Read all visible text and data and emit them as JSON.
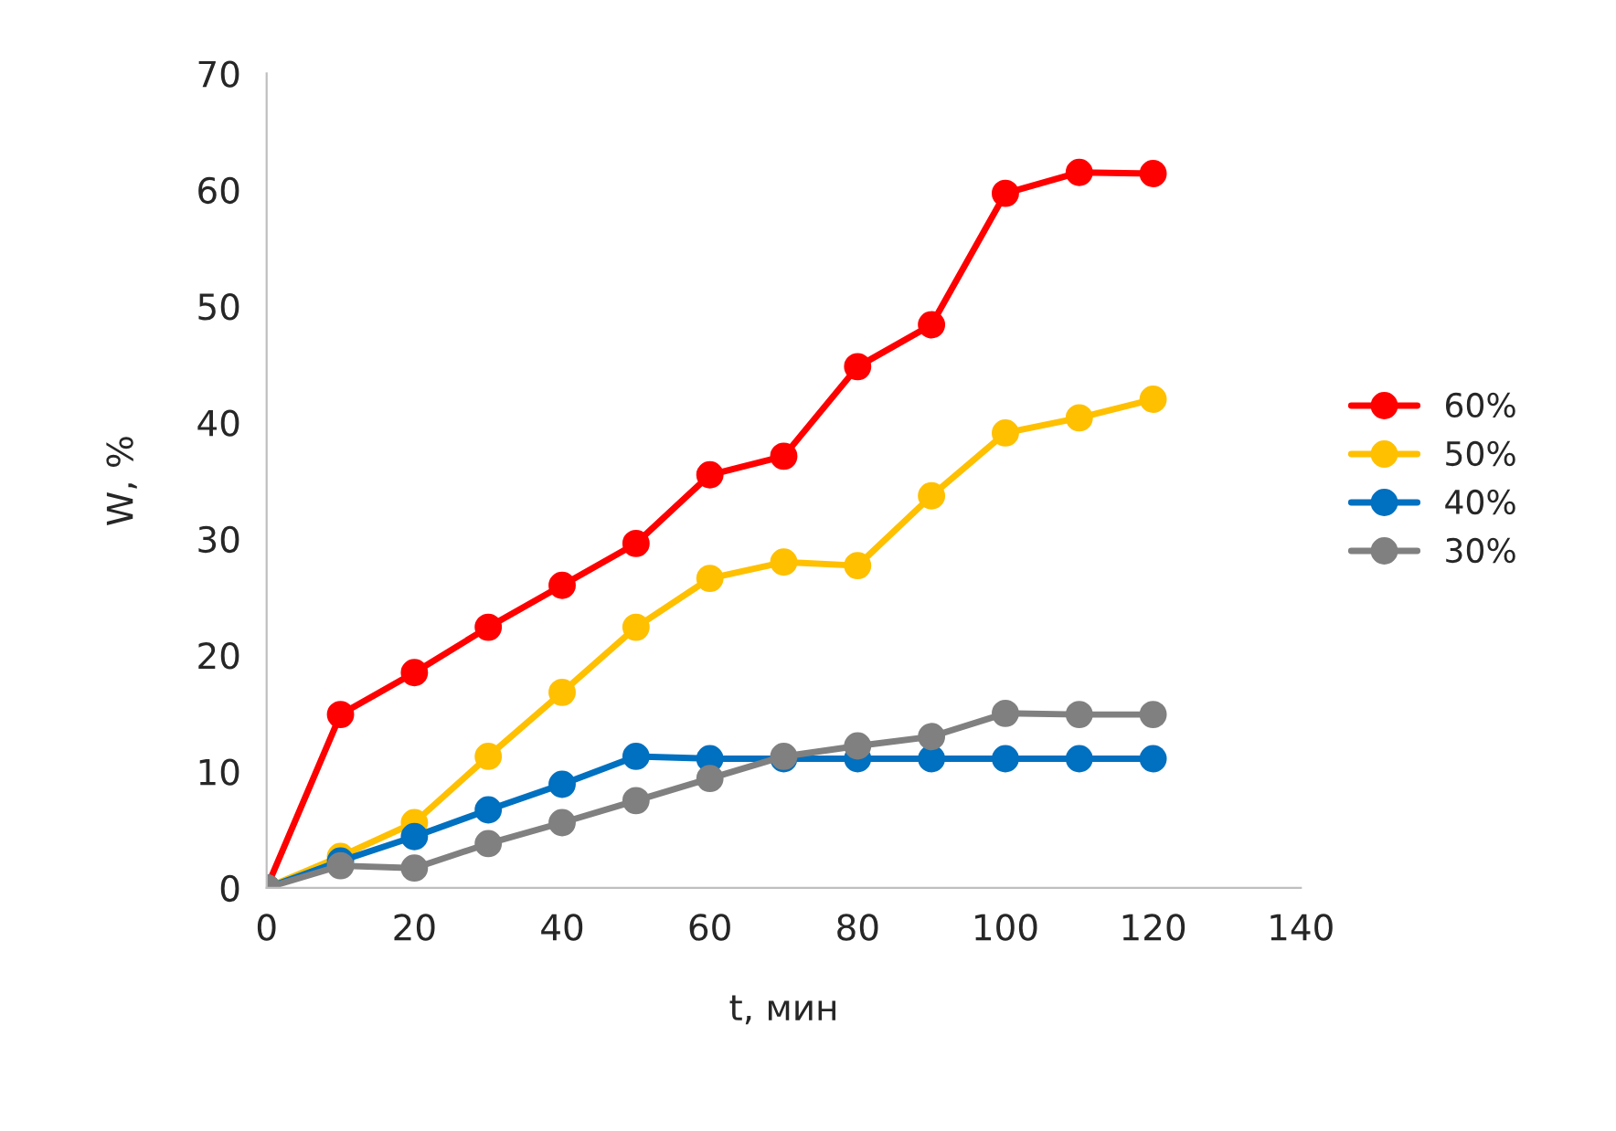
{
  "chart_data": {
    "type": "line",
    "xlabel": "t, мин",
    "ylabel": "W, %",
    "x": [
      0,
      10,
      20,
      30,
      40,
      50,
      60,
      70,
      80,
      90,
      100,
      110,
      120
    ],
    "series": [
      {
        "name": "60%",
        "color": "#ff0000",
        "values": [
          0,
          14.9,
          18.5,
          22.4,
          26.0,
          29.6,
          35.5,
          37.1,
          44.8,
          48.4,
          59.7,
          61.5,
          61.4
        ]
      },
      {
        "name": "50%",
        "color": "#ffc000",
        "values": [
          0,
          2.7,
          5.6,
          11.3,
          16.8,
          22.4,
          26.6,
          28.0,
          27.7,
          33.7,
          39.1,
          40.4,
          42.0
        ]
      },
      {
        "name": "40%",
        "color": "#0070c0",
        "values": [
          0,
          2.3,
          4.4,
          6.7,
          8.9,
          11.3,
          11.1,
          11.1,
          11.1,
          11.1,
          11.1,
          11.1,
          11.1
        ]
      },
      {
        "name": "30%",
        "color": "#808080",
        "values": [
          0,
          1.9,
          1.7,
          3.8,
          5.6,
          7.5,
          9.4,
          11.3,
          12.2,
          13.0,
          15.0,
          14.9,
          14.9
        ]
      }
    ],
    "xlim": [
      0,
      140
    ],
    "xticks": [
      0,
      20,
      40,
      60,
      80,
      100,
      120,
      140
    ],
    "ylim": [
      0,
      70
    ],
    "yticks": [
      0,
      10,
      20,
      30,
      40,
      50,
      60,
      70
    ],
    "grid": false,
    "legend": "right",
    "marker": "circle",
    "line_style": "solid"
  }
}
